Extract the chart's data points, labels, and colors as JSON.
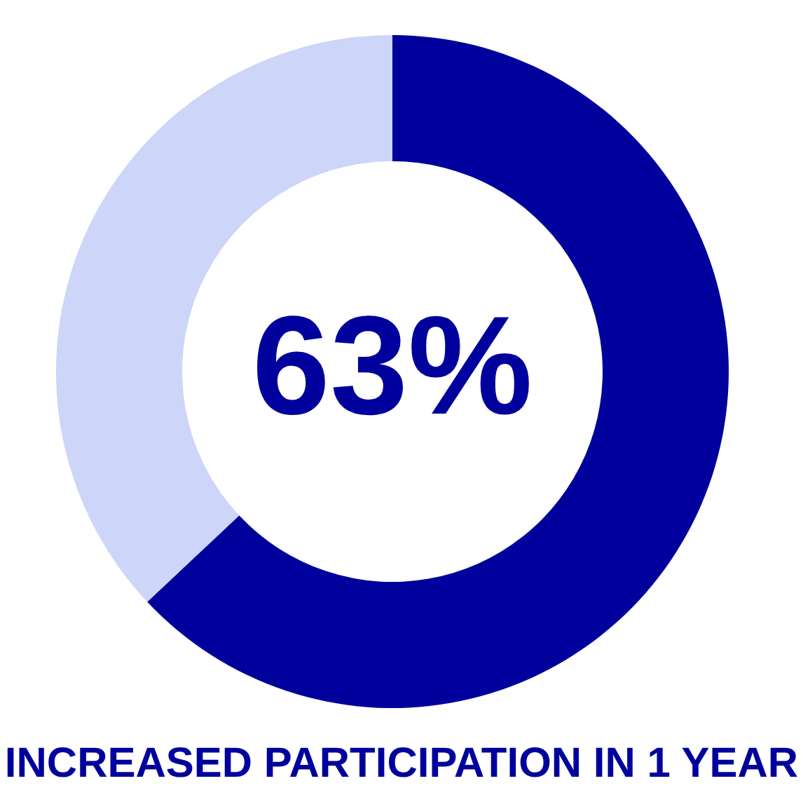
{
  "chart_data": {
    "type": "donut",
    "title": "INCREASED PARTICIPATION IN 1 YEAR",
    "categories": [
      null,
      null
    ],
    "values": [
      63,
      37
    ],
    "colors": [
      "#00009c",
      "#cdd5f9"
    ],
    "value_labels": [
      "63%",
      null
    ]
  }
}
